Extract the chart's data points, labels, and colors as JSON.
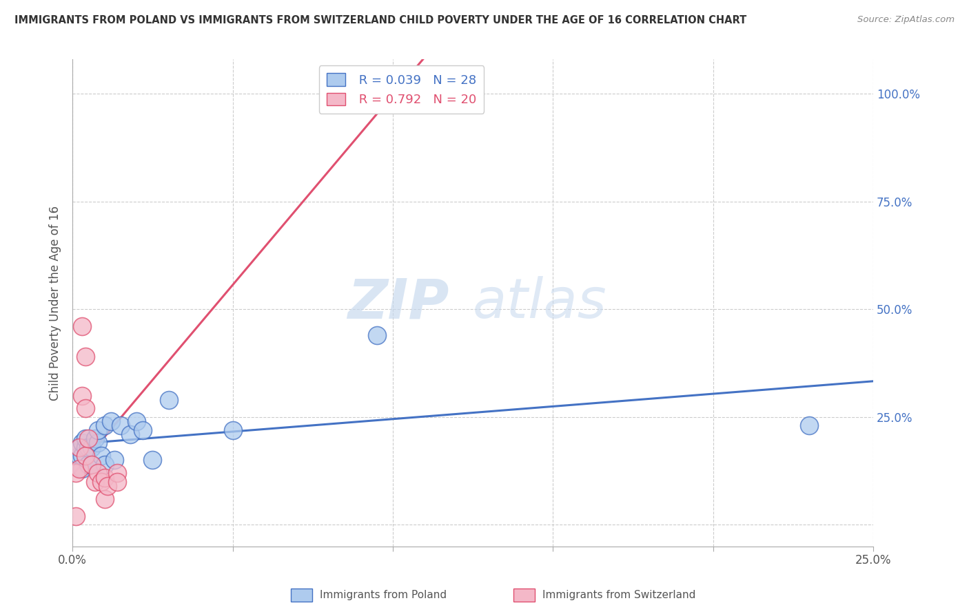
{
  "title": "IMMIGRANTS FROM POLAND VS IMMIGRANTS FROM SWITZERLAND CHILD POVERTY UNDER THE AGE OF 16 CORRELATION CHART",
  "source": "Source: ZipAtlas.com",
  "ylabel": "Child Poverty Under the Age of 16",
  "xlim": [
    0.0,
    0.25
  ],
  "ylim": [
    -0.05,
    1.08
  ],
  "xticks": [
    0.0,
    0.05,
    0.1,
    0.15,
    0.2,
    0.25
  ],
  "yticks": [
    0.0,
    0.25,
    0.5,
    0.75,
    1.0
  ],
  "poland_color": "#aecbee",
  "poland_color_dark": "#4472c4",
  "switzerland_color": "#f4b8c8",
  "switzerland_color_dark": "#e05070",
  "poland_R": 0.039,
  "poland_N": 28,
  "switzerland_R": 0.792,
  "switzerland_N": 20,
  "watermark_zip": "ZIP",
  "watermark_atlas": "atlas",
  "poland_x": [
    0.002,
    0.002,
    0.003,
    0.003,
    0.003,
    0.004,
    0.004,
    0.005,
    0.005,
    0.006,
    0.006,
    0.007,
    0.008,
    0.008,
    0.009,
    0.01,
    0.01,
    0.012,
    0.013,
    0.015,
    0.018,
    0.02,
    0.022,
    0.025,
    0.03,
    0.05,
    0.095,
    0.23
  ],
  "poland_y": [
    0.16,
    0.18,
    0.13,
    0.16,
    0.19,
    0.18,
    0.2,
    0.14,
    0.18,
    0.14,
    0.18,
    0.2,
    0.19,
    0.22,
    0.16,
    0.14,
    0.23,
    0.24,
    0.15,
    0.23,
    0.21,
    0.24,
    0.22,
    0.15,
    0.29,
    0.22,
    0.44,
    0.23
  ],
  "switzerland_x": [
    0.001,
    0.001,
    0.002,
    0.002,
    0.003,
    0.004,
    0.004,
    0.005,
    0.006,
    0.007,
    0.008,
    0.009,
    0.01,
    0.01,
    0.011,
    0.014,
    0.014,
    0.003,
    0.004,
    0.09
  ],
  "switzerland_y": [
    0.02,
    0.12,
    0.13,
    0.18,
    0.3,
    0.16,
    0.27,
    0.2,
    0.14,
    0.1,
    0.12,
    0.1,
    0.06,
    0.11,
    0.09,
    0.12,
    0.1,
    0.46,
    0.39,
    0.98
  ],
  "background_color": "#ffffff",
  "grid_color": "#cccccc"
}
